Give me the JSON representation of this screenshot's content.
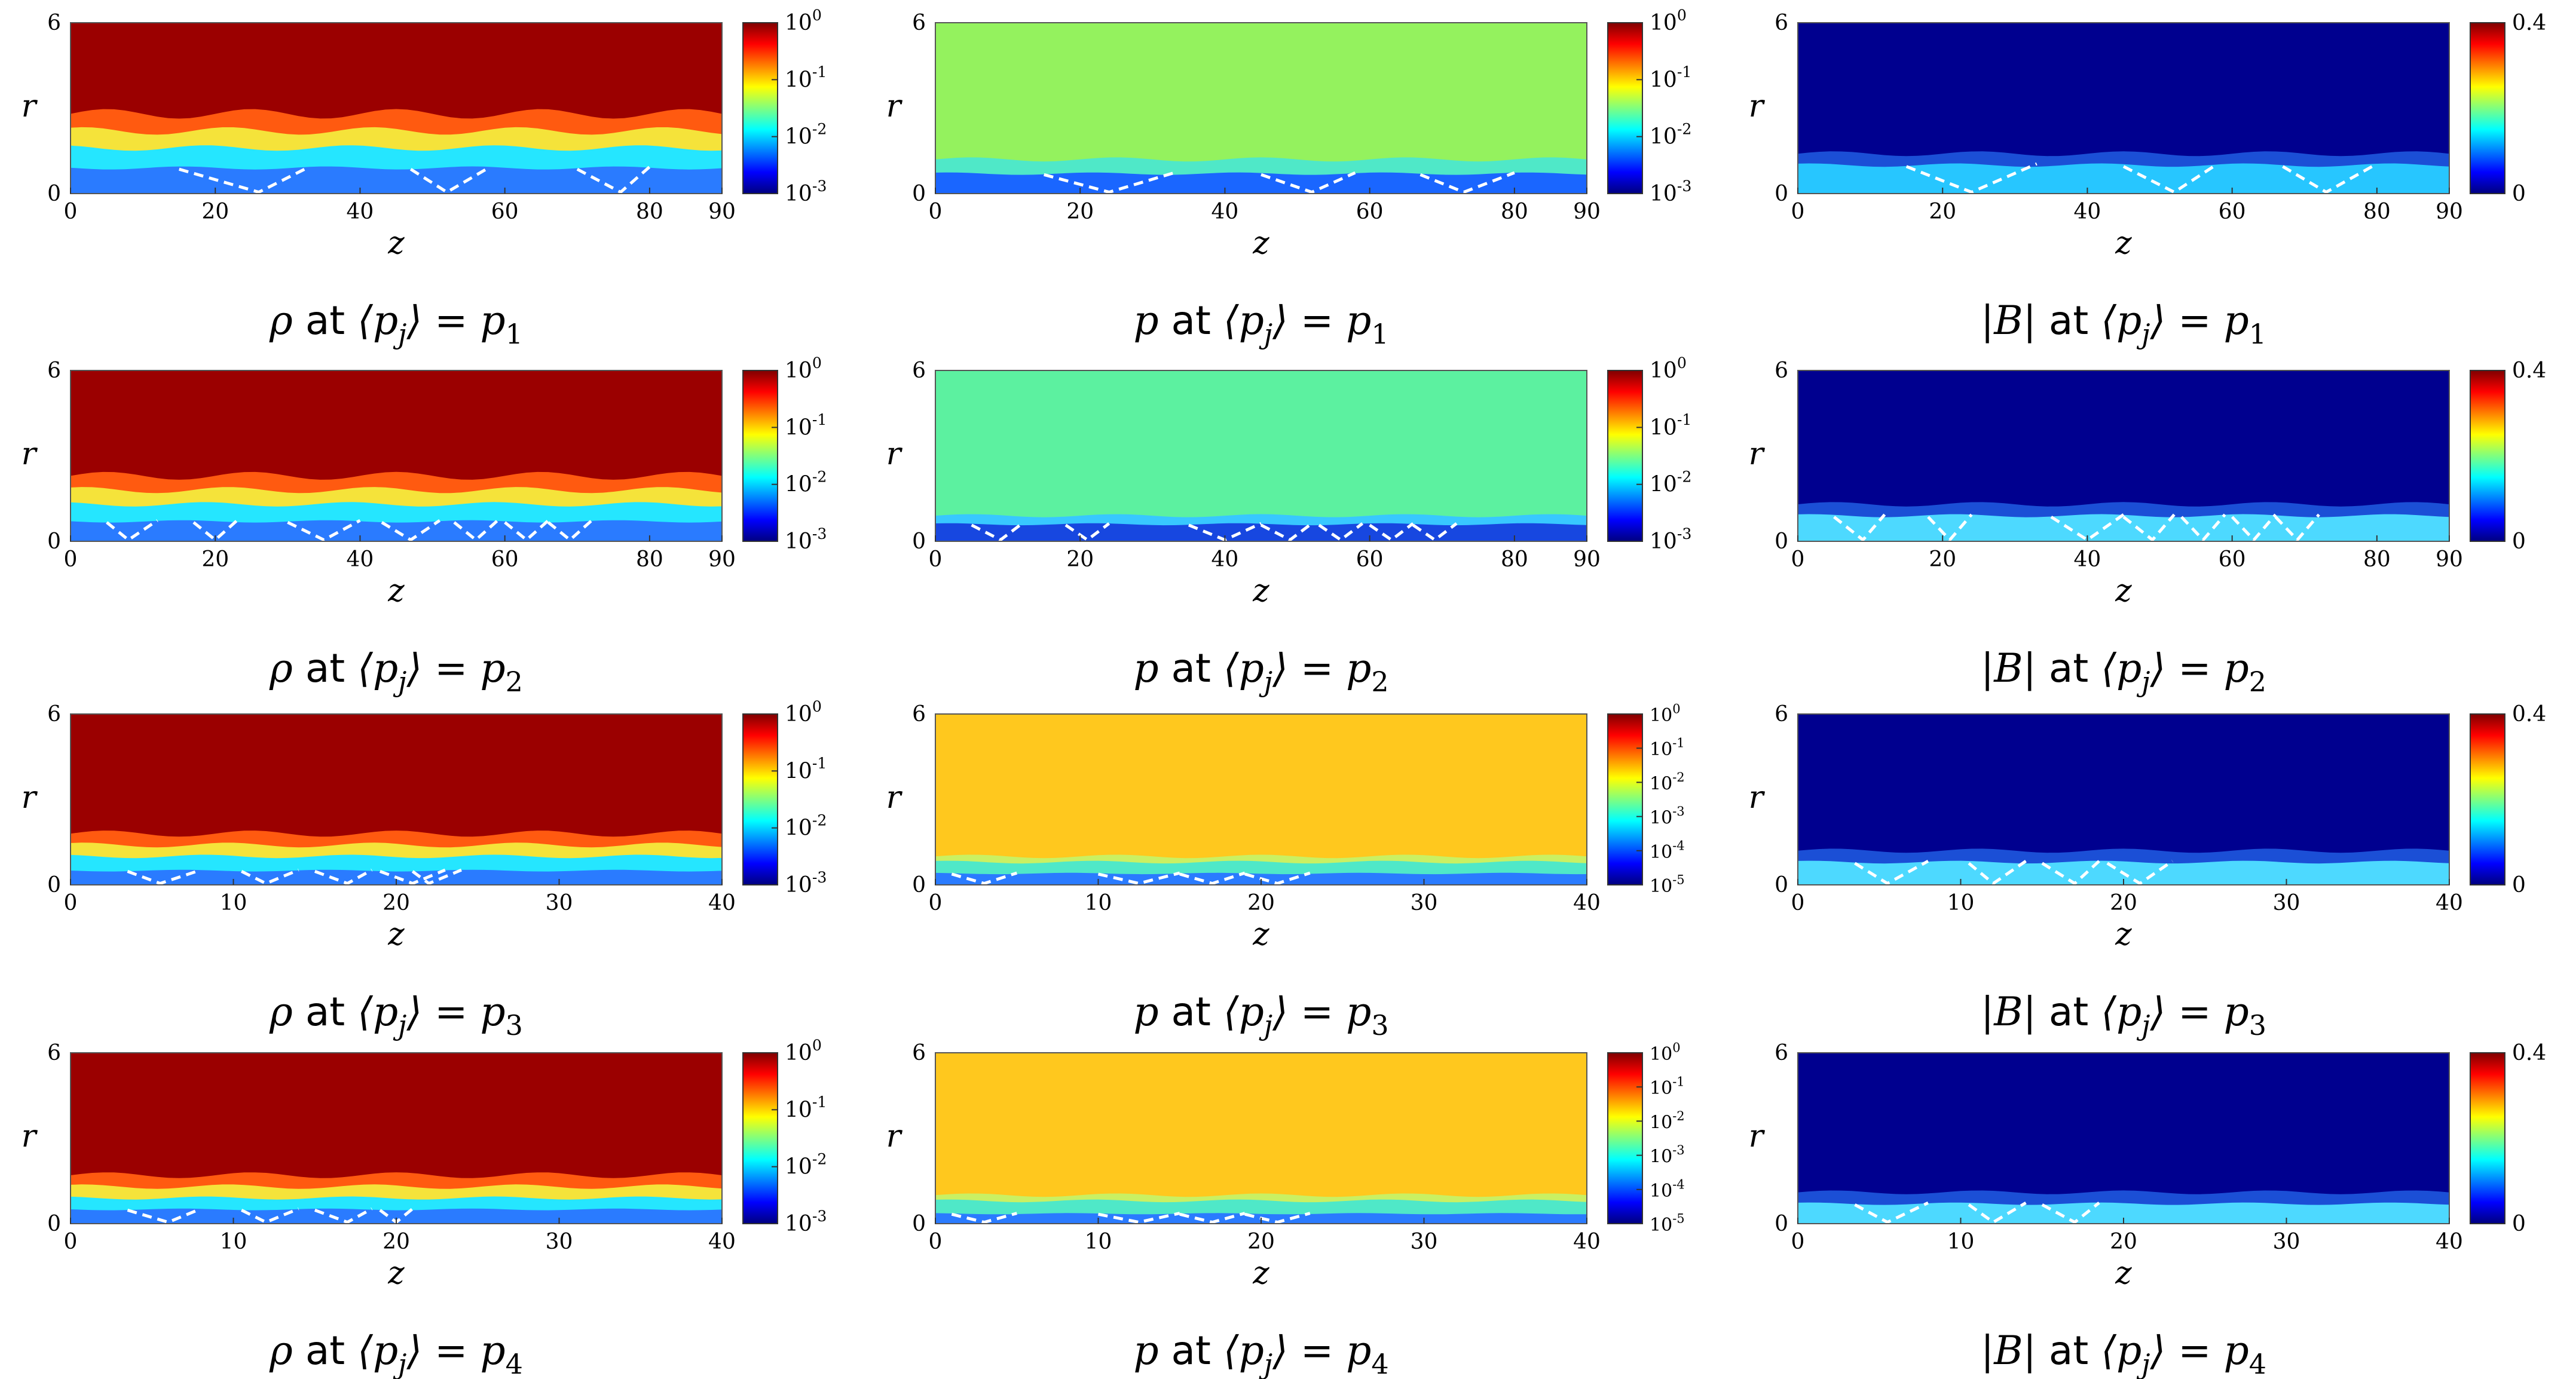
{
  "figure": {
    "columns": 3,
    "rows": 4
  },
  "chart_data": [
    {
      "type": "heatmap",
      "field": "ρ",
      "caption_var": "ρ",
      "caption_mid": "at",
      "caption_lhs": "⟨p",
      "caption_sub_j": "j",
      "caption_rhs": "⟩ = p",
      "caption_index": "1",
      "xlabel": "z",
      "ylabel": "r",
      "xlim": [
        0,
        90
      ],
      "ylim": [
        0,
        6
      ],
      "xticks": [
        "0",
        "20",
        "40",
        "60",
        "80",
        "90"
      ],
      "yticks": [
        "0",
        "6"
      ],
      "colorscale": "log",
      "colorbar_ticks": [
        "10^0",
        "10^-1",
        "10^-2",
        "10^-3"
      ],
      "background": "#9b0000",
      "layers": [
        {
          "r": [
            0,
            0.9
          ],
          "color": "#2a7bff"
        },
        {
          "r": [
            0.9,
            1.6
          ],
          "color": "#25e6ff"
        },
        {
          "r": [
            1.6,
            2.2
          ],
          "color": "#f5e33a"
        },
        {
          "r": [
            2.2,
            2.8
          ],
          "color": "#ff5a10"
        }
      ],
      "shocks": [
        [
          15,
          26,
          33
        ],
        [
          47,
          52,
          58
        ],
        [
          70,
          76,
          80
        ]
      ]
    },
    {
      "type": "heatmap",
      "field": "p",
      "caption_var": "p",
      "caption_mid": "at",
      "caption_lhs": "⟨p",
      "caption_sub_j": "j",
      "caption_rhs": "⟩ = p",
      "caption_index": "1",
      "xlabel": "z",
      "ylabel": "r",
      "xlim": [
        0,
        90
      ],
      "ylim": [
        0,
        6
      ],
      "xticks": [
        "0",
        "20",
        "40",
        "60",
        "80",
        "90"
      ],
      "yticks": [
        "0",
        "6"
      ],
      "colorscale": "log",
      "colorbar_ticks": [
        "10^0",
        "10^-1",
        "10^-2",
        "10^-3"
      ],
      "background": "#94f25e",
      "layers": [
        {
          "r": [
            0,
            0.7
          ],
          "color": "#1a66ff"
        },
        {
          "r": [
            0.7,
            1.2
          ],
          "color": "#4fe8c8"
        }
      ],
      "shocks": [
        [
          15,
          24,
          33
        ],
        [
          45,
          52,
          58
        ],
        [
          67,
          73,
          80
        ]
      ]
    },
    {
      "type": "heatmap",
      "field": "|B|",
      "caption_var": "|B|",
      "caption_mid": "at",
      "caption_lhs": "⟨p",
      "caption_sub_j": "j",
      "caption_rhs": "⟩ = p",
      "caption_index": "1",
      "xlabel": "z",
      "ylabel": "r",
      "xlim": [
        0,
        90
      ],
      "ylim": [
        0,
        6
      ],
      "xticks": [
        "0",
        "20",
        "40",
        "60",
        "80",
        "90"
      ],
      "yticks": [
        "0",
        "6"
      ],
      "colorscale": "linear",
      "colorbar_ticks": [
        "0.4",
        "0"
      ],
      "background": "#00008f",
      "layers": [
        {
          "r": [
            0,
            1.0
          ],
          "color": "#27c6ff"
        },
        {
          "r": [
            1.0,
            1.4
          ],
          "color": "#1b4fd6"
        }
      ],
      "shocks": [
        [
          15,
          24,
          33
        ],
        [
          45,
          52,
          58
        ],
        [
          67,
          73,
          80
        ]
      ]
    },
    {
      "type": "heatmap",
      "field": "ρ",
      "caption_var": "ρ",
      "caption_mid": "at",
      "caption_lhs": "⟨p",
      "caption_sub_j": "j",
      "caption_rhs": "⟩ = p",
      "caption_index": "2",
      "xlabel": "z",
      "ylabel": "r",
      "xlim": [
        0,
        90
      ],
      "ylim": [
        0,
        6
      ],
      "xticks": [
        "0",
        "20",
        "40",
        "60",
        "80",
        "90"
      ],
      "yticks": [
        "0",
        "6"
      ],
      "colorscale": "log",
      "colorbar_ticks": [
        "10^0",
        "10^-1",
        "10^-2",
        "10^-3"
      ],
      "background": "#9b0000",
      "layers": [
        {
          "r": [
            0,
            0.7
          ],
          "color": "#2a7bff"
        },
        {
          "r": [
            0.7,
            1.3
          ],
          "color": "#25e6ff"
        },
        {
          "r": [
            1.3,
            1.8
          ],
          "color": "#f5e33a"
        },
        {
          "r": [
            1.8,
            2.3
          ],
          "color": "#ff5a10"
        }
      ],
      "shocks": [
        [
          5,
          8,
          12
        ],
        [
          17,
          20,
          23
        ],
        [
          30,
          35,
          40
        ],
        [
          43,
          47,
          51
        ],
        [
          53,
          56,
          59
        ],
        [
          60,
          63,
          66
        ],
        [
          66,
          69,
          72
        ]
      ]
    },
    {
      "type": "heatmap",
      "field": "p",
      "caption_var": "p",
      "caption_mid": "at",
      "caption_lhs": "⟨p",
      "caption_sub_j": "j",
      "caption_rhs": "⟩ = p",
      "caption_index": "2",
      "xlabel": "z",
      "ylabel": "r",
      "xlim": [
        0,
        90
      ],
      "ylim": [
        0,
        6
      ],
      "xticks": [
        "0",
        "20",
        "40",
        "60",
        "80",
        "90"
      ],
      "yticks": [
        "0",
        "6"
      ],
      "colorscale": "log",
      "colorbar_ticks": [
        "10^0",
        "10^-1",
        "10^-2",
        "10^-3"
      ],
      "background": "#5cf1a0",
      "layers": [
        {
          "r": [
            0,
            0.6
          ],
          "color": "#1747e0"
        },
        {
          "r": [
            0.6,
            0.9
          ],
          "color": "#38c8ff"
        }
      ],
      "shocks": [
        [
          5,
          9,
          12
        ],
        [
          18,
          21,
          24
        ],
        [
          35,
          40,
          45
        ],
        [
          45,
          49,
          52
        ],
        [
          53,
          56,
          59
        ],
        [
          60,
          63,
          66
        ],
        [
          66,
          69,
          72
        ]
      ]
    },
    {
      "type": "heatmap",
      "field": "|B|",
      "caption_var": "|B|",
      "caption_mid": "at",
      "caption_lhs": "⟨p",
      "caption_sub_j": "j",
      "caption_rhs": "⟩ = p",
      "caption_index": "2",
      "xlabel": "z",
      "ylabel": "r",
      "xlim": [
        0,
        90
      ],
      "ylim": [
        0,
        6
      ],
      "xticks": [
        "0",
        "20",
        "40",
        "60",
        "80",
        "90"
      ],
      "yticks": [
        "0",
        "6"
      ],
      "colorscale": "linear",
      "colorbar_ticks": [
        "0.4",
        "0"
      ],
      "background": "#00008f",
      "layers": [
        {
          "r": [
            0,
            0.9
          ],
          "color": "#4dd9ff"
        },
        {
          "r": [
            0.9,
            1.3
          ],
          "color": "#1b4fd6"
        }
      ],
      "shocks": [
        [
          5,
          9,
          12
        ],
        [
          18,
          21,
          24
        ],
        [
          35,
          40,
          45
        ],
        [
          45,
          49,
          52
        ],
        [
          53,
          56,
          59
        ],
        [
          60,
          63,
          66
        ],
        [
          66,
          69,
          72
        ]
      ]
    },
    {
      "type": "heatmap",
      "field": "ρ",
      "caption_var": "ρ",
      "caption_mid": "at",
      "caption_lhs": "⟨p",
      "caption_sub_j": "j",
      "caption_rhs": "⟩ = p",
      "caption_index": "3",
      "xlabel": "z",
      "ylabel": "r",
      "xlim": [
        0,
        40
      ],
      "ylim": [
        0,
        6
      ],
      "xticks": [
        "0",
        "10",
        "20",
        "30",
        "40"
      ],
      "yticks": [
        "0",
        "6"
      ],
      "colorscale": "log",
      "colorbar_ticks": [
        "10^0",
        "10^-1",
        "10^-2",
        "10^-3"
      ],
      "background": "#9b0000",
      "layers": [
        {
          "r": [
            0,
            0.5
          ],
          "color": "#2a7bff"
        },
        {
          "r": [
            0.5,
            1.0
          ],
          "color": "#25e6ff"
        },
        {
          "r": [
            1.0,
            1.4
          ],
          "color": "#f5e33a"
        },
        {
          "r": [
            1.4,
            1.8
          ],
          "color": "#ff5a10"
        }
      ],
      "shocks": [
        [
          3.5,
          5.5,
          8
        ],
        [
          10.5,
          12,
          14
        ],
        [
          15,
          17,
          18.5
        ],
        [
          19,
          21,
          23
        ],
        [
          21,
          22,
          24
        ]
      ]
    },
    {
      "type": "heatmap",
      "field": "p",
      "caption_var": "p",
      "caption_mid": "at",
      "caption_lhs": "⟨p",
      "caption_sub_j": "j",
      "caption_rhs": "⟩ = p",
      "caption_index": "3",
      "xlabel": "z",
      "ylabel": "r",
      "xlim": [
        0,
        40
      ],
      "ylim": [
        0,
        6
      ],
      "xticks": [
        "0",
        "10",
        "20",
        "30",
        "40"
      ],
      "yticks": [
        "0",
        "6"
      ],
      "colorscale": "log",
      "colorbar_ticks": [
        "10^0",
        "10^-1",
        "10^-2",
        "10^-3",
        "10^-4",
        "10^-5"
      ],
      "background": "#ffc81e",
      "layers": [
        {
          "r": [
            0,
            0.4
          ],
          "color": "#2a7bff"
        },
        {
          "r": [
            0.4,
            0.8
          ],
          "color": "#4fe8c8"
        },
        {
          "r": [
            0.8,
            1.0
          ],
          "color": "#c9f063"
        }
      ],
      "shocks": [
        [
          1,
          3,
          5
        ],
        [
          10,
          12.5,
          15
        ],
        [
          15,
          17,
          19
        ],
        [
          19,
          21,
          23
        ]
      ]
    },
    {
      "type": "heatmap",
      "field": "|B|",
      "caption_var": "|B|",
      "caption_mid": "at",
      "caption_lhs": "⟨p",
      "caption_sub_j": "j",
      "caption_rhs": "⟩ = p",
      "caption_index": "3",
      "xlabel": "z",
      "ylabel": "r",
      "xlim": [
        0,
        40
      ],
      "ylim": [
        0,
        6
      ],
      "xticks": [
        "0",
        "10",
        "20",
        "30",
        "40"
      ],
      "yticks": [
        "0",
        "6"
      ],
      "colorscale": "linear",
      "colorbar_ticks": [
        "0.4",
        "0"
      ],
      "background": "#00008f",
      "layers": [
        {
          "r": [
            0,
            0.8
          ],
          "color": "#4dd9ff"
        },
        {
          "r": [
            0.8,
            1.2
          ],
          "color": "#1b4fd6"
        }
      ],
      "shocks": [
        [
          3.5,
          5.5,
          8
        ],
        [
          10.5,
          12,
          14
        ],
        [
          15,
          17,
          18.5
        ],
        [
          19,
          21,
          23
        ]
      ]
    },
    {
      "type": "heatmap",
      "field": "ρ",
      "caption_var": "ρ",
      "caption_mid": "at",
      "caption_lhs": "⟨p",
      "caption_sub_j": "j",
      "caption_rhs": "⟩ = p",
      "caption_index": "4",
      "xlabel": "z",
      "ylabel": "r",
      "xlim": [
        0,
        40
      ],
      "ylim": [
        0,
        6
      ],
      "xticks": [
        "0",
        "10",
        "20",
        "30",
        "40"
      ],
      "yticks": [
        "0",
        "6"
      ],
      "colorscale": "log",
      "colorbar_ticks": [
        "10^0",
        "10^-1",
        "10^-2",
        "10^-3"
      ],
      "background": "#9b0000",
      "layers": [
        {
          "r": [
            0,
            0.5
          ],
          "color": "#2a7bff"
        },
        {
          "r": [
            0.5,
            0.9
          ],
          "color": "#25e6ff"
        },
        {
          "r": [
            0.9,
            1.3
          ],
          "color": "#f5e33a"
        },
        {
          "r": [
            1.3,
            1.7
          ],
          "color": "#ff5a10"
        }
      ],
      "shocks": [
        [
          3.5,
          6,
          8
        ],
        [
          10.5,
          12,
          14
        ],
        [
          15,
          17,
          18.5
        ],
        [
          19,
          20,
          21
        ]
      ]
    },
    {
      "type": "heatmap",
      "field": "p",
      "caption_var": "p",
      "caption_mid": "at",
      "caption_lhs": "⟨p",
      "caption_sub_j": "j",
      "caption_rhs": "⟩ = p",
      "caption_index": "4",
      "xlabel": "z",
      "ylabel": "r",
      "xlim": [
        0,
        40
      ],
      "ylim": [
        0,
        6
      ],
      "xticks": [
        "0",
        "10",
        "20",
        "30",
        "40"
      ],
      "yticks": [
        "0",
        "6"
      ],
      "colorscale": "log",
      "colorbar_ticks": [
        "10^0",
        "10^-1",
        "10^-2",
        "10^-3",
        "10^-4",
        "10^-5"
      ],
      "background": "#ffc81e",
      "layers": [
        {
          "r": [
            0,
            0.35
          ],
          "color": "#2a7bff"
        },
        {
          "r": [
            0.35,
            0.8
          ],
          "color": "#4fe8c8"
        },
        {
          "r": [
            0.8,
            1.0
          ],
          "color": "#c9f063"
        }
      ],
      "shocks": [
        [
          1,
          3,
          5
        ],
        [
          10,
          12.5,
          15
        ],
        [
          15,
          17,
          19
        ],
        [
          19,
          21,
          23
        ]
      ]
    },
    {
      "type": "heatmap",
      "field": "|B|",
      "caption_var": "|B|",
      "caption_mid": "at",
      "caption_lhs": "⟨p",
      "caption_sub_j": "j",
      "caption_rhs": "⟩ = p",
      "caption_index": "4",
      "xlabel": "z",
      "ylabel": "r",
      "xlim": [
        0,
        40
      ],
      "ylim": [
        0,
        6
      ],
      "xticks": [
        "0",
        "10",
        "20",
        "30",
        "40"
      ],
      "yticks": [
        "0",
        "6"
      ],
      "colorscale": "linear",
      "colorbar_ticks": [
        "0.4",
        "0"
      ],
      "background": "#00008f",
      "layers": [
        {
          "r": [
            0,
            0.7
          ],
          "color": "#4dd9ff"
        },
        {
          "r": [
            0.7,
            1.1
          ],
          "color": "#1b4fd6"
        }
      ],
      "shocks": [
        [
          3.5,
          5.5,
          8
        ],
        [
          10.5,
          12,
          14
        ],
        [
          15,
          17,
          18.5
        ]
      ]
    }
  ]
}
